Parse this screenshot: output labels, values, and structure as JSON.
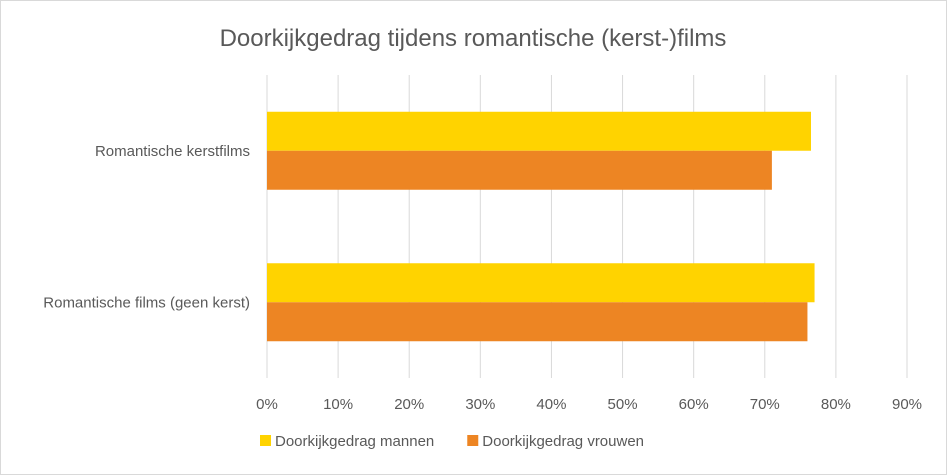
{
  "chart_data": {
    "type": "bar",
    "orientation": "horizontal",
    "title": "Doorkijkgedrag tijdens romantische (kerst-)films",
    "categories": [
      "Romantische kerstfilms",
      "Romantische films (geen kerst)"
    ],
    "series": [
      {
        "name": "Doorkijkgedrag mannen",
        "color": "#FFD300",
        "values": [
          76.5,
          77
        ]
      },
      {
        "name": "Doorkijkgedrag vrouwen",
        "color": "#ED8523",
        "values": [
          71,
          76
        ]
      }
    ],
    "xlim": [
      0,
      90
    ],
    "x_ticks": [
      0,
      10,
      20,
      30,
      40,
      50,
      60,
      70,
      80,
      90
    ],
    "tick_format": "percent",
    "grid": "vertical",
    "legend_position": "bottom"
  }
}
